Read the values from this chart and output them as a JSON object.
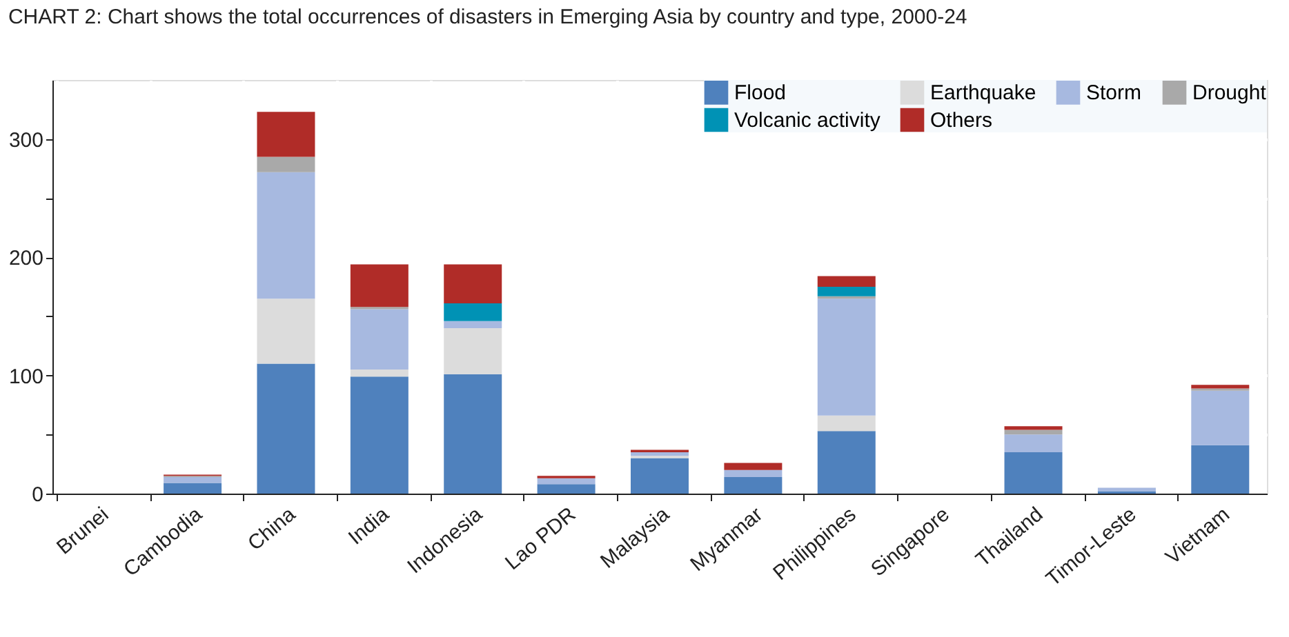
{
  "chart_data": {
    "type": "bar",
    "stacked": true,
    "title": "CHART 2: Chart shows the total occurrences of disasters in Emerging Asia by country and type, 2000-24",
    "categories": [
      "Brunei",
      "Cambodia",
      "China",
      "India",
      "Indonesia",
      "Lao PDR",
      "Malaysia",
      "Myanmar",
      "Philippines",
      "Singapore",
      "Thailand",
      "Timor-Leste",
      "Vietnam"
    ],
    "series": [
      {
        "name": "Flood",
        "color": "#4f81bd",
        "values": [
          0,
          9,
          110,
          99,
          101,
          8,
          30,
          14,
          53,
          0,
          35,
          2,
          41
        ]
      },
      {
        "name": "Earthquake",
        "color": "#dcdcdc",
        "values": [
          0,
          0,
          55,
          6,
          39,
          0,
          2,
          null,
          13,
          0,
          null,
          0,
          0
        ]
      },
      {
        "name": "Storm",
        "color": "#a7b9e0",
        "values": [
          0,
          5,
          107,
          51,
          6,
          5,
          3,
          6,
          99,
          0,
          15,
          3,
          46
        ]
      },
      {
        "name": "Drought",
        "color": "#a9a9a9",
        "values": [
          0,
          1,
          13,
          2,
          null,
          0,
          0,
          0,
          2,
          0,
          4,
          0,
          2
        ]
      },
      {
        "name": "Volcanic activity",
        "color": "#0092b5",
        "values": [
          0,
          0,
          0,
          0,
          15,
          0,
          0,
          0,
          8,
          0,
          0,
          0,
          0
        ]
      },
      {
        "name": "Others",
        "color": "#b02c28",
        "values": [
          0,
          1,
          38,
          36,
          33,
          2,
          2,
          6,
          9,
          0,
          3,
          0,
          3
        ]
      }
    ],
    "ylim": [
      0,
      350
    ],
    "yticks": [
      0,
      {
        "value": 50,
        "label": null
      },
      100,
      {
        "value": 150,
        "label": null
      },
      200,
      {
        "value": 250,
        "label": null
      },
      300
    ],
    "grid": true,
    "legend": "top right"
  }
}
